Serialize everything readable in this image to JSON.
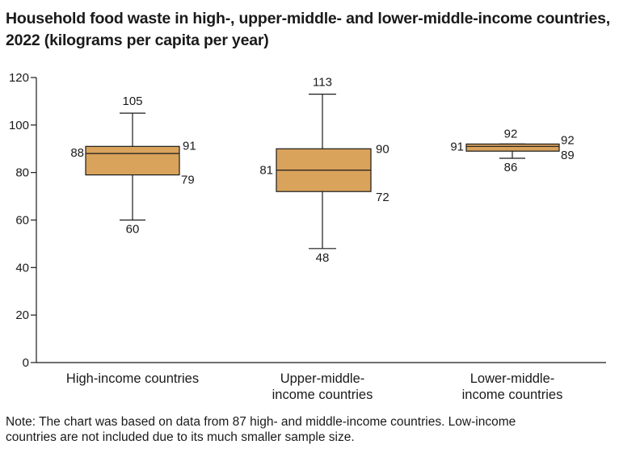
{
  "title_lines": [
    "Household food waste in high-, upper-middle- and lower-middle-income countries,",
    "2022 (kilograms per capita per year)"
  ],
  "note_lines": [
    "Note: The chart was based on data from 87 high- and middle-income countries. Low-income",
    "countries are not included due to its much smaller sample size."
  ],
  "colors": {
    "box_fill": "#D9A35C",
    "stroke": "#1a1a1a"
  },
  "chart_data": {
    "type": "box",
    "title": "Household food waste in high-, upper-middle- and lower-middle-income countries, 2022 (kilograms per capita per year)",
    "ylim": [
      0,
      120
    ],
    "yticks": [
      0,
      20,
      40,
      60,
      80,
      100,
      120
    ],
    "grid": false,
    "categories": [
      {
        "lines": [
          "High-income countries"
        ],
        "min": 60,
        "q1": 79,
        "median": 88,
        "q3": 91,
        "max": 105,
        "labels": {
          "min": "60",
          "q1": "79",
          "median": "88",
          "q3": "91",
          "max": "105"
        }
      },
      {
        "lines": [
          "Upper-middle-",
          "income countries"
        ],
        "min": 48,
        "q1": 72,
        "median": 81,
        "q3": 90,
        "max": 113,
        "labels": {
          "min": "48",
          "q1": "72",
          "median": "81",
          "q3": "90",
          "max": "113"
        }
      },
      {
        "lines": [
          "Lower-middle-",
          "income countries"
        ],
        "min": 86,
        "q1": 89,
        "median": 91,
        "q3": 92,
        "max": 92,
        "labels": {
          "min": "86",
          "q1": "89",
          "median": "91",
          "q3": "92",
          "max": "92"
        }
      }
    ]
  }
}
